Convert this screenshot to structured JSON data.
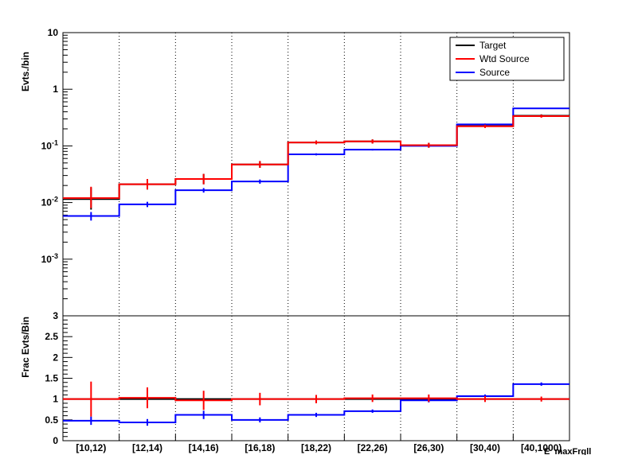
{
  "chart_data": [
    {
      "type": "line",
      "panel": "top",
      "scale": "log",
      "ylabel": "Evts./bin",
      "ylim": [
        0.0001,
        10
      ],
      "y_ticks": [
        {
          "value": 10,
          "base": "10",
          "exp": ""
        },
        {
          "value": 1,
          "base": "1",
          "exp": ""
        },
        {
          "value": 0.1,
          "base": "10",
          "exp": "-1"
        },
        {
          "value": 0.01,
          "base": "10",
          "exp": "-2"
        },
        {
          "value": 0.001,
          "base": "10",
          "exp": "-3"
        }
      ],
      "grid_x": true,
      "legend_position": "top-right",
      "legend": [
        "Target",
        "Wtd Source",
        "Source"
      ],
      "colors": {
        "Target": "#000000",
        "Wtd Source": "#ff0000",
        "Source": "#0000ff"
      },
      "series": [
        {
          "name": "Target",
          "values": [
            0.0115,
            0.021,
            0.026,
            0.047,
            0.115,
            0.12,
            0.103,
            0.225,
            0.34
          ],
          "errors_low": [
            0.004,
            0.004,
            0.005,
            0.006,
            0.008,
            0.01,
            0.01,
            0.015,
            0.02
          ],
          "errors_high": [
            0.007,
            0.005,
            0.006,
            0.007,
            0.009,
            0.01,
            0.01,
            0.015,
            0.02
          ]
        },
        {
          "name": "Wtd Source",
          "values": [
            0.012,
            0.021,
            0.026,
            0.047,
            0.115,
            0.12,
            0.103,
            0.222,
            0.335
          ],
          "errors_low": [
            0.004,
            0.004,
            0.005,
            0.006,
            0.008,
            0.01,
            0.01,
            0.015,
            0.02
          ],
          "errors_high": [
            0.007,
            0.005,
            0.006,
            0.007,
            0.009,
            0.01,
            0.01,
            0.015,
            0.02
          ]
        },
        {
          "name": "Source",
          "values": [
            0.0058,
            0.0093,
            0.0165,
            0.0235,
            0.071,
            0.086,
            0.1,
            0.24,
            0.46
          ],
          "errors_low": [
            0.001,
            0.001,
            0.0015,
            0.002,
            0.003,
            0.003,
            0.004,
            0.008,
            0.01
          ],
          "errors_high": [
            0.001,
            0.001,
            0.0015,
            0.002,
            0.003,
            0.003,
            0.004,
            0.008,
            0.01
          ]
        }
      ]
    },
    {
      "type": "line",
      "panel": "bottom",
      "ylabel": "Frac Evts/Bin",
      "xlabel": "E_maxFrgll",
      "ylim": [
        0,
        3
      ],
      "y_ticks": [
        0,
        0.5,
        1,
        1.5,
        2,
        2.5,
        3
      ],
      "grid_x": true,
      "categories": [
        "[10,12)",
        "[12,14)",
        "[14,16)",
        "[16,18)",
        "[18,22)",
        "[22,26)",
        "[26,30)",
        "[30,40)",
        "[40,1000)"
      ],
      "series": [
        {
          "name": "Target",
          "values": [
            1.0,
            1.0,
            1.0,
            1.0,
            1.0,
            1.0,
            1.0,
            1.0,
            1.0
          ],
          "errors": [
            0,
            0,
            0,
            0,
            0,
            0,
            0,
            0,
            0
          ]
        },
        {
          "name": "Wtd Source",
          "values": [
            1.0,
            1.03,
            0.97,
            1.0,
            1.0,
            1.02,
            1.02,
            1.0,
            1.0
          ],
          "errors": [
            0.42,
            0.25,
            0.23,
            0.15,
            0.1,
            0.09,
            0.09,
            0.07,
            0.06
          ]
        },
        {
          "name": "Source",
          "values": [
            0.48,
            0.44,
            0.62,
            0.5,
            0.62,
            0.71,
            0.97,
            1.07,
            1.36
          ],
          "errors": [
            0.1,
            0.08,
            0.1,
            0.06,
            0.05,
            0.04,
            0.05,
            0.04,
            0.04
          ]
        }
      ]
    }
  ]
}
